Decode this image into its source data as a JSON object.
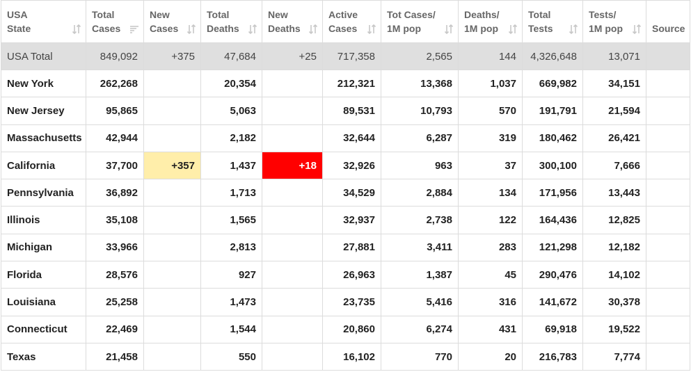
{
  "headers": [
    {
      "l1": "USA",
      "l2": "State",
      "sort": "both"
    },
    {
      "l1": "Total",
      "l2": "Cases",
      "sort": "desc"
    },
    {
      "l1": "New",
      "l2": "Cases",
      "sort": "both"
    },
    {
      "l1": "Total",
      "l2": "Deaths",
      "sort": "both"
    },
    {
      "l1": "New",
      "l2": "Deaths",
      "sort": "both"
    },
    {
      "l1": "Active",
      "l2": "Cases",
      "sort": "both"
    },
    {
      "l1": "Tot Cases/",
      "l2": "1M pop",
      "sort": "both"
    },
    {
      "l1": "Deaths/",
      "l2": "1M pop",
      "sort": "both"
    },
    {
      "l1": "Total",
      "l2": "Tests",
      "sort": "both"
    },
    {
      "l1": "Tests/",
      "l2": "1M pop",
      "sort": "both"
    },
    {
      "l1": "",
      "l2": "Source",
      "sort": "none"
    }
  ],
  "colors": {
    "new_cases_highlight": "#ffeeaa",
    "new_deaths_highlight": "#ff0000",
    "total_row_bg": "#dfdfdf"
  },
  "rows": [
    {
      "state": "USA Total",
      "total_cases": "849,092",
      "new_cases": "+375",
      "total_deaths": "47,684",
      "new_deaths": "+25",
      "active_cases": "717,358",
      "cases_per_1m": "2,565",
      "deaths_per_1m": "144",
      "total_tests": "4,326,648",
      "tests_per_1m": "13,071",
      "source": ""
    },
    {
      "state": "New York",
      "total_cases": "262,268",
      "new_cases": "",
      "total_deaths": "20,354",
      "new_deaths": "",
      "active_cases": "212,321",
      "cases_per_1m": "13,368",
      "deaths_per_1m": "1,037",
      "total_tests": "669,982",
      "tests_per_1m": "34,151",
      "source": ""
    },
    {
      "state": "New Jersey",
      "total_cases": "95,865",
      "new_cases": "",
      "total_deaths": "5,063",
      "new_deaths": "",
      "active_cases": "89,531",
      "cases_per_1m": "10,793",
      "deaths_per_1m": "570",
      "total_tests": "191,791",
      "tests_per_1m": "21,594",
      "source": ""
    },
    {
      "state": "Massachusetts",
      "total_cases": "42,944",
      "new_cases": "",
      "total_deaths": "2,182",
      "new_deaths": "",
      "active_cases": "32,644",
      "cases_per_1m": "6,287",
      "deaths_per_1m": "319",
      "total_tests": "180,462",
      "tests_per_1m": "26,421",
      "source": ""
    },
    {
      "state": "California",
      "total_cases": "37,700",
      "new_cases": "+357",
      "total_deaths": "1,437",
      "new_deaths": "+18",
      "active_cases": "32,926",
      "cases_per_1m": "963",
      "deaths_per_1m": "37",
      "total_tests": "300,100",
      "tests_per_1m": "7,666",
      "source": ""
    },
    {
      "state": "Pennsylvania",
      "total_cases": "36,892",
      "new_cases": "",
      "total_deaths": "1,713",
      "new_deaths": "",
      "active_cases": "34,529",
      "cases_per_1m": "2,884",
      "deaths_per_1m": "134",
      "total_tests": "171,956",
      "tests_per_1m": "13,443",
      "source": ""
    },
    {
      "state": "Illinois",
      "total_cases": "35,108",
      "new_cases": "",
      "total_deaths": "1,565",
      "new_deaths": "",
      "active_cases": "32,937",
      "cases_per_1m": "2,738",
      "deaths_per_1m": "122",
      "total_tests": "164,436",
      "tests_per_1m": "12,825",
      "source": ""
    },
    {
      "state": "Michigan",
      "total_cases": "33,966",
      "new_cases": "",
      "total_deaths": "2,813",
      "new_deaths": "",
      "active_cases": "27,881",
      "cases_per_1m": "3,411",
      "deaths_per_1m": "283",
      "total_tests": "121,298",
      "tests_per_1m": "12,182",
      "source": ""
    },
    {
      "state": "Florida",
      "total_cases": "28,576",
      "new_cases": "",
      "total_deaths": "927",
      "new_deaths": "",
      "active_cases": "26,963",
      "cases_per_1m": "1,387",
      "deaths_per_1m": "45",
      "total_tests": "290,476",
      "tests_per_1m": "14,102",
      "source": ""
    },
    {
      "state": "Louisiana",
      "total_cases": "25,258",
      "new_cases": "",
      "total_deaths": "1,473",
      "new_deaths": "",
      "active_cases": "23,735",
      "cases_per_1m": "5,416",
      "deaths_per_1m": "316",
      "total_tests": "141,672",
      "tests_per_1m": "30,378",
      "source": ""
    },
    {
      "state": "Connecticut",
      "total_cases": "22,469",
      "new_cases": "",
      "total_deaths": "1,544",
      "new_deaths": "",
      "active_cases": "20,860",
      "cases_per_1m": "6,274",
      "deaths_per_1m": "431",
      "total_tests": "69,918",
      "tests_per_1m": "19,522",
      "source": ""
    },
    {
      "state": "Texas",
      "total_cases": "21,458",
      "new_cases": "",
      "total_deaths": "550",
      "new_deaths": "",
      "active_cases": "16,102",
      "cases_per_1m": "770",
      "deaths_per_1m": "20",
      "total_tests": "216,783",
      "tests_per_1m": "7,774",
      "source": ""
    }
  ]
}
